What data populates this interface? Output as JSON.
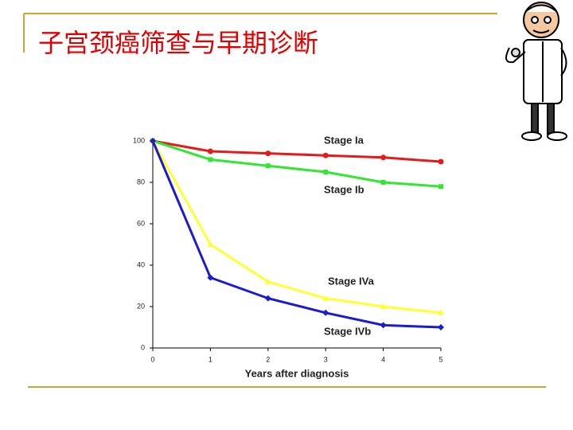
{
  "slide": {
    "title": "子宫颈癌筛查与早期诊断"
  },
  "chart_data": {
    "type": "line",
    "x_label": "Years after diagnosis",
    "x": [
      0,
      1,
      2,
      3,
      4,
      5
    ],
    "xlim": [
      0,
      5
    ],
    "xticks": [
      0,
      1,
      2,
      3,
      4,
      5
    ],
    "ylim": [
      0,
      100
    ],
    "yticks": [
      0,
      20,
      40,
      60,
      80,
      100
    ],
    "grid": false,
    "series": [
      {
        "name": "Stage Ia",
        "color": "#e31b1b",
        "marker": "circle",
        "values": [
          100,
          95,
          94,
          93,
          92,
          90
        ]
      },
      {
        "name": "Stage Ib",
        "color": "#33e633",
        "marker": "square",
        "values": [
          100,
          91,
          88,
          85,
          80,
          78
        ]
      },
      {
        "name": "Stage IVa",
        "color": "#ffff33",
        "marker": "triangle",
        "values": [
          100,
          50,
          32,
          24,
          20,
          17
        ]
      },
      {
        "name": "Stage IVb",
        "color": "#1b1bd0",
        "marker": "diamond",
        "values": [
          100,
          34,
          24,
          17,
          11,
          10
        ]
      }
    ]
  }
}
